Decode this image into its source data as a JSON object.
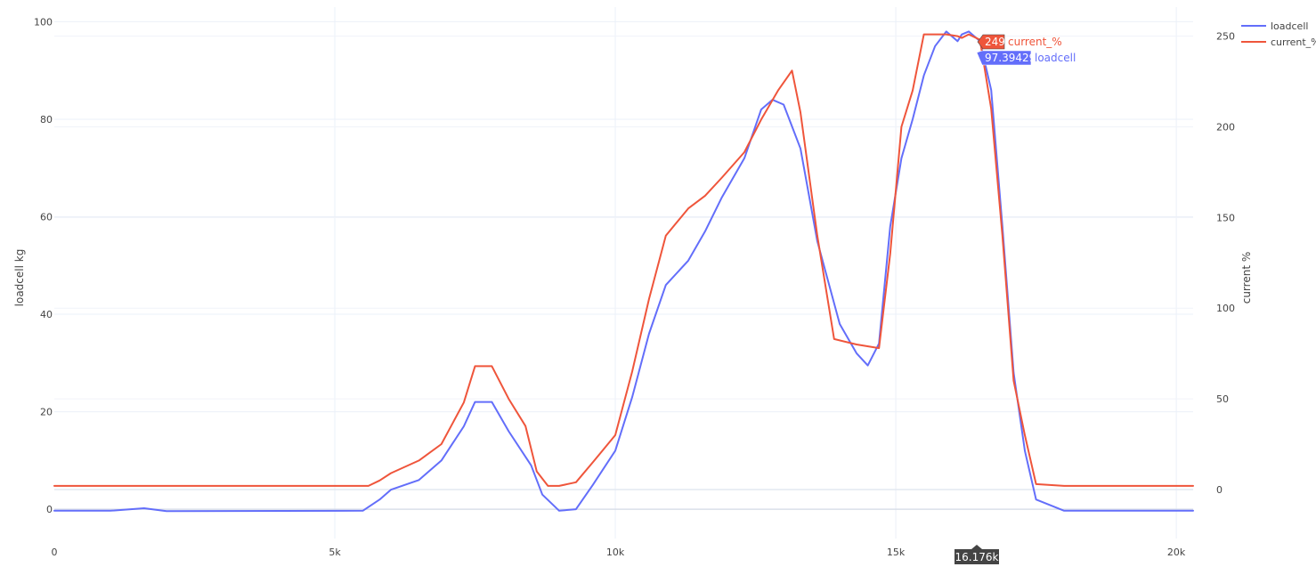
{
  "chart_data": {
    "type": "line",
    "x_ticks": [
      {
        "value": 0,
        "label": "0"
      },
      {
        "value": 5000,
        "label": "5k"
      },
      {
        "value": 10000,
        "label": "10k"
      },
      {
        "value": 15000,
        "label": "15k"
      },
      {
        "value": 20000,
        "label": "20k"
      }
    ],
    "xlim": [
      0,
      20300
    ],
    "y_left": {
      "label": "loadcell kg",
      "range": [
        -6,
        103
      ],
      "ticks": [
        0,
        20,
        40,
        60,
        80,
        100
      ]
    },
    "y_right": {
      "label": "current %",
      "range": [
        -27,
        266
      ],
      "ticks": [
        0,
        50,
        100,
        150,
        200,
        250
      ]
    },
    "grid": true,
    "legend": {
      "position": "top-right",
      "items": [
        {
          "name": "loadcell",
          "color": "#636efa"
        },
        {
          "name": "current_%",
          "color": "#ef553b"
        }
      ]
    },
    "series": [
      {
        "name": "loadcell",
        "axis": "left",
        "color": "#636efa",
        "x": [
          0,
          1000,
          1600,
          2000,
          5500,
          5800,
          6000,
          6500,
          6900,
          7300,
          7500,
          7800,
          8100,
          8500,
          8700,
          9000,
          9300,
          9600,
          10000,
          10300,
          10600,
          10900,
          11300,
          11600,
          11900,
          12300,
          12600,
          12800,
          13000,
          13300,
          13600,
          14000,
          14300,
          14500,
          14700,
          14900,
          15100,
          15300,
          15500,
          15700,
          15900,
          16100,
          16176,
          16300,
          16500,
          16700,
          16900,
          17100,
          17300,
          17500,
          18000,
          20300
        ],
        "y": [
          -0.3,
          -0.3,
          0.2,
          -0.4,
          -0.3,
          2,
          4,
          6,
          10,
          17,
          22,
          22,
          16,
          9,
          3,
          -0.3,
          0,
          5,
          12,
          23,
          36,
          46,
          51,
          57,
          64,
          72,
          82,
          84,
          83,
          74,
          55,
          38,
          32,
          29.5,
          34,
          58,
          72,
          80,
          89,
          95,
          98,
          96,
          97.4,
          98,
          96,
          86,
          58,
          28,
          12,
          2,
          -0.3,
          -0.3
        ]
      },
      {
        "name": "current_%",
        "axis": "right",
        "color": "#ef553b",
        "x": [
          0,
          5600,
          5800,
          6000,
          6500,
          6900,
          7300,
          7500,
          7800,
          8100,
          8400,
          8600,
          8800,
          9000,
          9300,
          9600,
          10000,
          10300,
          10600,
          10900,
          11300,
          11600,
          11900,
          12300,
          12600,
          12900,
          13150,
          13300,
          13600,
          13900,
          14300,
          14700,
          14900,
          15100,
          15300,
          15500,
          15700,
          15900,
          16100,
          16176,
          16300,
          16500,
          16700,
          16900,
          17100,
          17300,
          17500,
          18000,
          20300
        ],
        "y": [
          2,
          2,
          5,
          9,
          16,
          25,
          48,
          68,
          68,
          50,
          35,
          10,
          2,
          2,
          4,
          15,
          30,
          65,
          105,
          140,
          155,
          162,
          172,
          186,
          204,
          220,
          231,
          208,
          140,
          83,
          80,
          78,
          130,
          200,
          220,
          251,
          251,
          251,
          250,
          249,
          251,
          248,
          210,
          140,
          60,
          30,
          3,
          2,
          2
        ]
      }
    ],
    "hover": {
      "x_label": "16.176k",
      "labels": [
        {
          "series": "current_%",
          "value": "249",
          "name": "current_%"
        },
        {
          "series": "loadcell",
          "value": "97.39429",
          "name": "loadcell"
        }
      ]
    }
  }
}
